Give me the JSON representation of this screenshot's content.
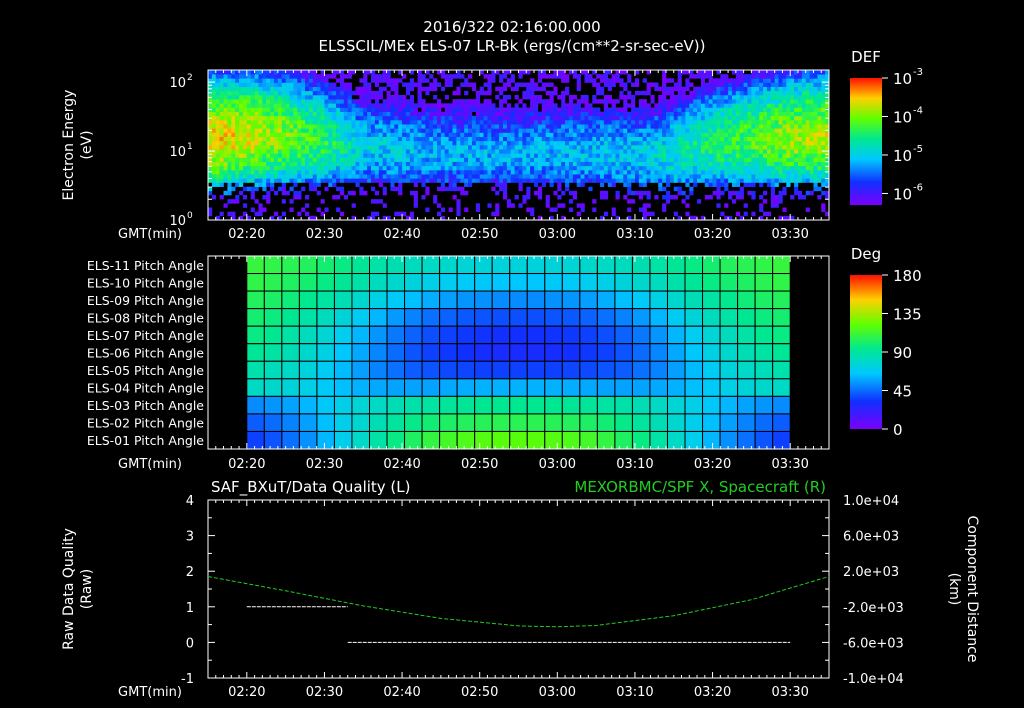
{
  "header": {
    "timestamp": "2016/322 02:16:00.000",
    "title": "ELSSCIL/MEx ELS-07 LR-Bk  (ergs/(cm**2-sr-sec-eV))"
  },
  "time_axis": {
    "label": "GMT(min)",
    "ticks": [
      "02:20",
      "02:30",
      "02:40",
      "02:50",
      "03:00",
      "03:10",
      "03:20",
      "03:30"
    ]
  },
  "colors": {
    "background": "#000000",
    "foreground": "#ffffff",
    "spacecraft_line": "#22cc22"
  },
  "chart_data": [
    {
      "type": "heatmap",
      "name": "energy-spectrogram",
      "ylabel": [
        "Electron Energy",
        "(eV)"
      ],
      "yscale": "log",
      "ylim": [
        1,
        150
      ],
      "y_ticks": [
        {
          "base": "10",
          "exp": "0"
        },
        {
          "base": "10",
          "exp": "1"
        },
        {
          "base": "10",
          "exp": "2"
        }
      ],
      "xlim_minutes_gmt": [
        "02:15",
        "03:35"
      ],
      "colorbar": {
        "label": "DEF",
        "scale": "log",
        "ticks": [
          {
            "base": "10",
            "exp": "-3"
          },
          {
            "base": "10",
            "exp": "-4"
          },
          {
            "base": "10",
            "exp": "-5"
          },
          {
            "base": "10",
            "exp": "-6"
          }
        ]
      },
      "intensity_profile": {
        "times": [
          "02:16",
          "02:20",
          "02:25",
          "02:30",
          "02:35",
          "02:45",
          "02:55",
          "03:05",
          "03:12",
          "03:15",
          "03:20",
          "03:25",
          "03:30",
          "03:35"
        ],
        "peak_energy_eV": [
          16,
          18,
          18,
          15,
          12,
          10,
          10,
          10,
          9,
          10,
          14,
          16,
          17,
          18
        ],
        "peak_level_log10": [
          -3.6,
          -3.7,
          -4.0,
          -4.4,
          -5.0,
          -5.2,
          -5.2,
          -5.1,
          -5.0,
          -4.8,
          -4.5,
          -4.2,
          -3.9,
          -3.8
        ]
      }
    },
    {
      "type": "heatmap",
      "name": "pitch-angle-grid",
      "rows": [
        "ELS-11 Pitch Angle",
        "ELS-10 Pitch Angle",
        "ELS-09 Pitch Angle",
        "ELS-08 Pitch Angle",
        "ELS-07 Pitch Angle",
        "ELS-06 Pitch Angle",
        "ELS-05 Pitch Angle",
        "ELS-04 Pitch Angle",
        "ELS-03 Pitch Angle",
        "ELS-02 Pitch Angle",
        "ELS-01 Pitch Angle"
      ],
      "time_range": [
        "02:20",
        "03:30"
      ],
      "columns": 31,
      "colorbar": {
        "label": "Deg",
        "ticks": [
          "180",
          "135",
          "90",
          "45",
          "0"
        ],
        "range": [
          0,
          180
        ]
      },
      "cell_values_deg": [
        [
          110,
          108,
          106,
          104,
          100,
          96,
          92,
          88,
          85,
          82,
          80,
          78,
          76,
          75,
          74,
          74,
          74,
          75,
          76,
          78,
          80,
          82,
          85,
          88,
          92,
          96,
          100,
          104,
          106,
          108,
          110
        ],
        [
          108,
          106,
          103,
          100,
          96,
          92,
          87,
          82,
          78,
          74,
          71,
          69,
          67,
          66,
          65,
          65,
          65,
          66,
          67,
          69,
          71,
          74,
          78,
          82,
          87,
          92,
          96,
          100,
          103,
          106,
          108
        ],
        [
          104,
          102,
          98,
          94,
          89,
          84,
          78,
          72,
          67,
          63,
          59,
          56,
          54,
          53,
          52,
          52,
          52,
          53,
          54,
          56,
          59,
          63,
          67,
          72,
          78,
          84,
          89,
          94,
          98,
          102,
          104
        ],
        [
          100,
          97,
          93,
          88,
          82,
          75,
          68,
          61,
          55,
          50,
          46,
          43,
          41,
          40,
          39,
          39,
          39,
          40,
          41,
          43,
          46,
          50,
          55,
          61,
          68,
          75,
          82,
          88,
          93,
          97,
          100
        ],
        [
          96,
          93,
          88,
          82,
          76,
          69,
          61,
          54,
          48,
          43,
          39,
          36,
          34,
          33,
          32,
          32,
          32,
          33,
          34,
          36,
          39,
          43,
          48,
          54,
          61,
          69,
          76,
          82,
          88,
          93,
          96
        ],
        [
          92,
          89,
          84,
          78,
          72,
          65,
          58,
          51,
          45,
          40,
          36,
          34,
          32,
          31,
          30,
          30,
          30,
          31,
          32,
          34,
          36,
          40,
          45,
          51,
          58,
          65,
          72,
          78,
          84,
          89,
          92
        ],
        [
          86,
          83,
          79,
          74,
          68,
          62,
          56,
          50,
          46,
          42,
          40,
          38,
          37,
          36,
          36,
          36,
          36,
          36,
          37,
          38,
          40,
          42,
          46,
          50,
          56,
          62,
          68,
          74,
          79,
          83,
          86
        ],
        [
          80,
          78,
          75,
          71,
          67,
          63,
          60,
          58,
          57,
          57,
          57,
          58,
          59,
          60,
          60,
          60,
          60,
          60,
          59,
          58,
          57,
          57,
          57,
          58,
          60,
          63,
          67,
          71,
          75,
          78,
          80
        ],
        [
          52,
          54,
          57,
          61,
          66,
          71,
          76,
          80,
          84,
          87,
          89,
          91,
          92,
          93,
          93,
          93,
          93,
          93,
          92,
          91,
          89,
          87,
          84,
          80,
          76,
          71,
          66,
          61,
          57,
          54,
          52
        ],
        [
          42,
          45,
          50,
          56,
          63,
          70,
          77,
          84,
          90,
          95,
          99,
          102,
          104,
          105,
          106,
          106,
          106,
          105,
          104,
          102,
          99,
          95,
          90,
          84,
          77,
          70,
          63,
          56,
          50,
          45,
          42
        ],
        [
          36,
          40,
          46,
          53,
          61,
          70,
          79,
          88,
          96,
          103,
          109,
          114,
          117,
          119,
          120,
          120,
          120,
          119,
          117,
          114,
          109,
          103,
          96,
          88,
          79,
          70,
          61,
          53,
          46,
          40,
          36
        ]
      ]
    },
    {
      "type": "line",
      "name": "data-quality-and-spacecraft",
      "title_left": "SAF_BXuT/Data Quality (L)",
      "title_right": "MEXORBMC/SPF X, Spacecraft (R)",
      "ylabel_left": [
        "Raw Data Quality",
        "(Raw)"
      ],
      "ylabel_right": [
        "Component Distance",
        "(km)"
      ],
      "ylim_left": [
        -1,
        4
      ],
      "y_ticks_left": [
        "-1",
        "0",
        "1",
        "2",
        "3",
        "4"
      ],
      "ylim_right": [
        -10000,
        10000
      ],
      "y_ticks_right": [
        "1.0e+04",
        "6.0e+03",
        "2.0e+03",
        "-2.0e+03",
        "-6.0e+03",
        "-1.0e+04"
      ],
      "series": [
        {
          "name": "SAF_BXuT/Data Quality",
          "axis": "left",
          "segments": [
            {
              "x": [
                "02:20",
                "02:33"
              ],
              "y": [
                1,
                1
              ]
            },
            {
              "x": [
                "02:33",
                "03:30"
              ],
              "y": [
                0,
                0
              ]
            }
          ]
        },
        {
          "name": "MEXORBMC/SPF X, Spacecraft",
          "axis": "right",
          "x": [
            "02:15",
            "02:25",
            "02:35",
            "02:45",
            "02:55",
            "03:00",
            "03:05",
            "03:15",
            "03:25",
            "03:35"
          ],
          "y": [
            1400,
            -200,
            -1900,
            -3300,
            -4150,
            -4250,
            -4100,
            -3000,
            -1200,
            1400
          ]
        }
      ]
    }
  ]
}
